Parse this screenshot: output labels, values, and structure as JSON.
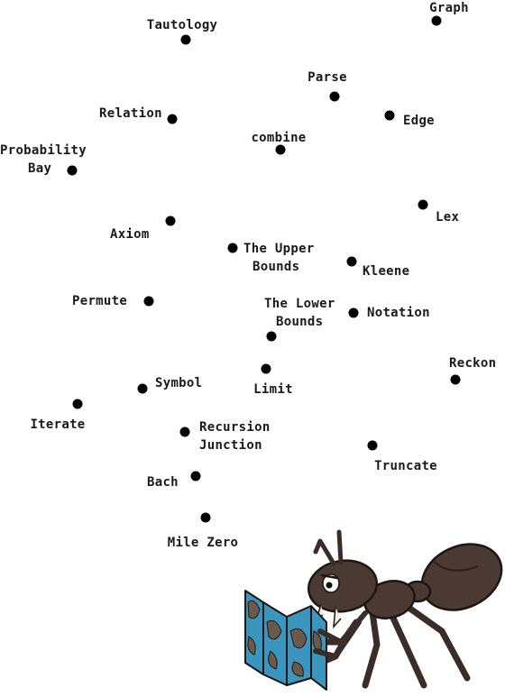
{
  "map": {
    "places": [
      {
        "id": "tautology",
        "lines": [
          "Tautology"
        ]
      },
      {
        "id": "graph",
        "lines": [
          "Graph"
        ]
      },
      {
        "id": "parse",
        "lines": [
          "Parse"
        ]
      },
      {
        "id": "relation",
        "lines": [
          "Relation"
        ]
      },
      {
        "id": "edge",
        "lines": [
          "Edge"
        ]
      },
      {
        "id": "combine",
        "lines": [
          "combine"
        ]
      },
      {
        "id": "probability-bay",
        "lines": [
          "Probability",
          "Bay"
        ]
      },
      {
        "id": "lex",
        "lines": [
          "Lex"
        ]
      },
      {
        "id": "axiom",
        "lines": [
          "Axiom"
        ]
      },
      {
        "id": "the-upper-bounds",
        "lines": [
          "The Upper",
          "Bounds"
        ]
      },
      {
        "id": "kleene",
        "lines": [
          "Kleene"
        ]
      },
      {
        "id": "permute",
        "lines": [
          "Permute"
        ]
      },
      {
        "id": "the-lower-bounds",
        "lines": [
          "The Lower",
          "Bounds"
        ]
      },
      {
        "id": "notation",
        "lines": [
          "Notation"
        ]
      },
      {
        "id": "reckon",
        "lines": [
          "Reckon"
        ]
      },
      {
        "id": "limit",
        "lines": [
          "Limit"
        ]
      },
      {
        "id": "symbol",
        "lines": [
          "Symbol"
        ]
      },
      {
        "id": "iterate",
        "lines": [
          "Iterate"
        ]
      },
      {
        "id": "recursion-junction",
        "lines": [
          "Recursion",
          "Junction"
        ]
      },
      {
        "id": "truncate",
        "lines": [
          "Truncate"
        ]
      },
      {
        "id": "bach",
        "lines": [
          "Bach"
        ]
      },
      {
        "id": "mile-zero",
        "lines": [
          "Mile Zero"
        ]
      }
    ]
  },
  "colors": {
    "dot": "#000000",
    "ant_body": "#4a3a33",
    "map_water": "#3a95bf",
    "map_land": "#6b5a4c"
  },
  "illustration": {
    "icon": "ant-reading-map-icon"
  }
}
